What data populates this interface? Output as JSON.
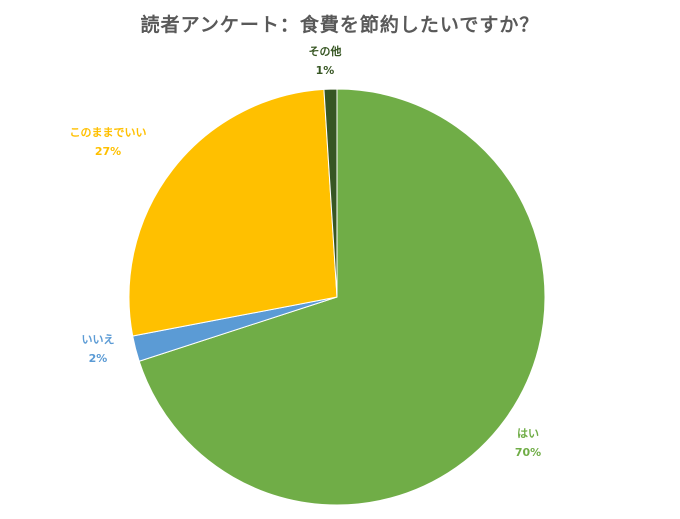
{
  "chart_data": {
    "type": "pie",
    "title": "読者アンケート：食費を節約したいですか？",
    "slices": [
      {
        "name": "はい",
        "value": 70,
        "value_label": "70%",
        "color": "#70AD47"
      },
      {
        "name": "いいえ",
        "value": 2,
        "value_label": "2%",
        "color": "#5B9BD5"
      },
      {
        "name": "このままでいい",
        "value": 27,
        "value_label": "27%",
        "color": "#FFC000"
      },
      {
        "name": "その他",
        "value": 1,
        "value_label": "1%",
        "color": "#375623"
      }
    ],
    "label_colors": {
      "はい": "#70AD47",
      "いいえ": "#5B9BD5",
      "このままでいい": "#FFC000",
      "その他": "#375623"
    },
    "start_angle_deg": 0,
    "direction": "clockwise",
    "legend": "none"
  }
}
